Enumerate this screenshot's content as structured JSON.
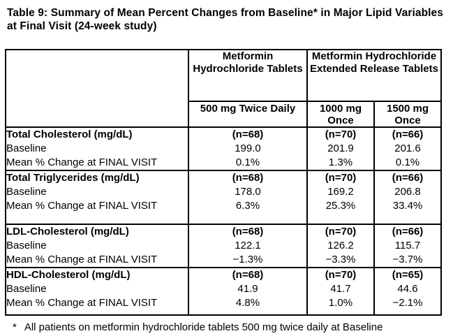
{
  "title": "Table 9: Summary of Mean Percent Changes from Baseline* in Major Lipid Variables at Final Visit (24-week study)",
  "table": {
    "header": {
      "group_ir": "Metformin Hydrochloride Tablets",
      "group_er": "Metformin Hydrochloride Extended Release Tablets",
      "doses": [
        "500 mg Twice Daily",
        "1000 mg Once",
        "1500 mg Once"
      ]
    },
    "labels": {
      "baseline": "Baseline",
      "change": "Mean % Change at FINAL VISIT"
    },
    "sections": [
      {
        "label": "Total Cholesterol (mg/dL)",
        "cells": [
          {
            "n": "(n=68)",
            "baseline": "199.0",
            "change": "0.1%"
          },
          {
            "n": "(n=70)",
            "baseline": "201.9",
            "change": "1.3%"
          },
          {
            "n": "(n=66)",
            "baseline": "201.6",
            "change": "0.1%"
          }
        ]
      },
      {
        "label": "Total Triglycerides (mg/dL)",
        "cells": [
          {
            "n": "(n=68)",
            "baseline": "178.0",
            "change": "6.3%"
          },
          {
            "n": "(n=70)",
            "baseline": "169.2",
            "change": "25.3%"
          },
          {
            "n": "(n=66)",
            "baseline": "206.8",
            "change": "33.4%"
          }
        ]
      },
      {
        "label": "LDL-Cholesterol (mg/dL)",
        "cells": [
          {
            "n": "(n=68)",
            "baseline": "122.1",
            "change": "−1.3%"
          },
          {
            "n": "(n=70)",
            "baseline": "126.2",
            "change": "−3.3%"
          },
          {
            "n": "(n=66)",
            "baseline": "115.7",
            "change": "−3.7%"
          }
        ]
      },
      {
        "label": "HDL-Cholesterol (mg/dL)",
        "cells": [
          {
            "n": "(n=68)",
            "baseline": "41.9",
            "change": "4.8%"
          },
          {
            "n": "(n=70)",
            "baseline": "41.7",
            "change": "1.0%"
          },
          {
            "n": "(n=65)",
            "baseline": "44.6",
            "change": "−2.1%"
          }
        ]
      }
    ]
  },
  "footnote": {
    "marker": "*",
    "text": "All patients on metformin hydrochloride tablets 500 mg twice daily at Baseline"
  },
  "colors": {
    "text": "#000000",
    "background": "#ffffff",
    "border": "#000000"
  }
}
